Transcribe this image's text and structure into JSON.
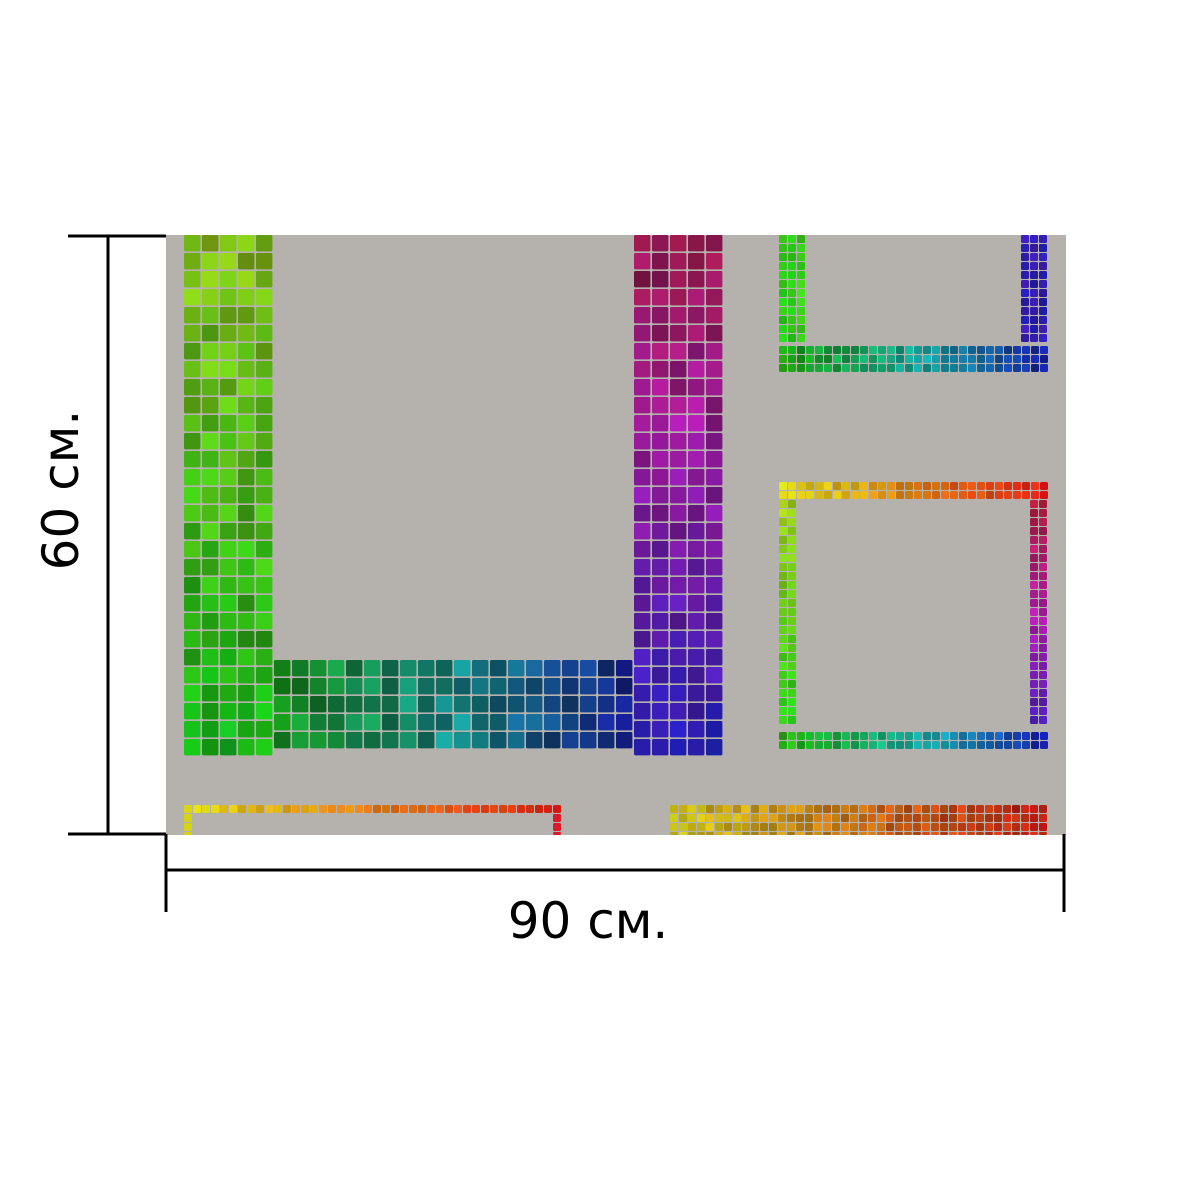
{
  "dimensions": {
    "width_label": "90 см.",
    "height_label": "60 см."
  },
  "colors": {
    "background_panel": "#b5b1ad",
    "tile_gap": "#ffffff",
    "dimension_line": "#000000"
  }
}
